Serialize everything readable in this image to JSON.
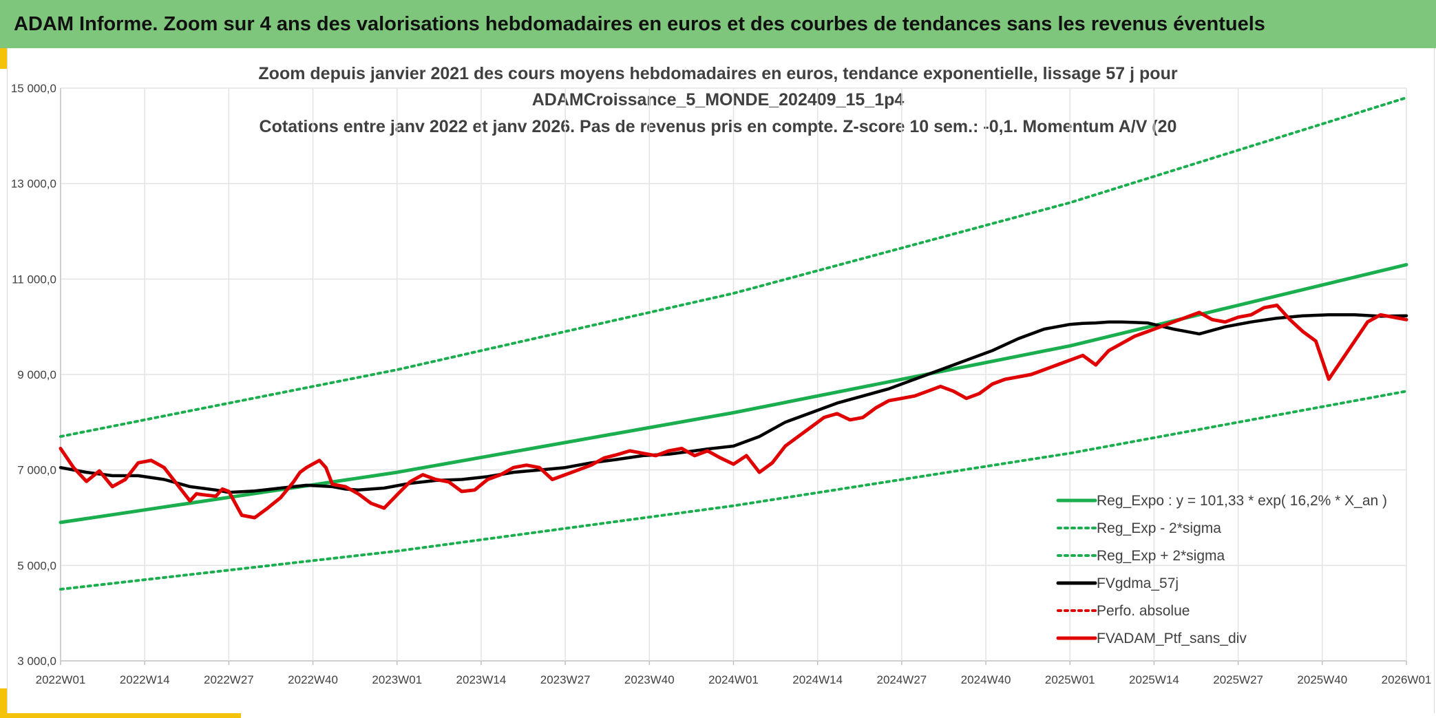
{
  "banner": {
    "title": "ADAM Informe. Zoom sur 4 ans des valorisations hebdomadaires en euros et des courbes de tendances sans les revenus éventuels",
    "color": "#7dc67b",
    "accent": "#f5c20a"
  },
  "chart_data": {
    "type": "line",
    "title_lines": [
      "Zoom depuis janvier 2021 des cours moyens hebdomadaires en euros, tendance exponentielle, lissage 57 j pour",
      "ADAMCroissance_5_MONDE_202409_15_1p4",
      "Cotations entre janv 2022 et janv 2026. Pas de revenus pris en compte. Z-score 10 sem.: -0,1. Momentum A/V (20"
    ],
    "xlabel": "",
    "ylabel": "",
    "x_ticks": [
      "2022W01",
      "2022W14",
      "2022W27",
      "2022W40",
      "2023W01",
      "2023W14",
      "2023W27",
      "2023W40",
      "2024W01",
      "2024W14",
      "2024W27",
      "2024W40",
      "2025W01",
      "2025W14",
      "2025W27",
      "2025W40",
      "2026W01"
    ],
    "x_range": [
      0,
      208
    ],
    "y_ticks": [
      "3 000,0",
      "5 000,0",
      "7 000,0",
      "9 000,0",
      "11 000,0",
      "13 000,0",
      "15 000,0"
    ],
    "ylim": [
      3000,
      15000
    ],
    "grid": true,
    "legend_position": "bottom-right",
    "series": [
      {
        "name": "Reg_Expo : y = 101,33 * exp( 16,2% *  X_an )",
        "color": "#1aae4e",
        "style": "solid",
        "x": [
          0,
          52,
          104,
          156,
          208
        ],
        "y": [
          5900,
          6950,
          8200,
          9600,
          11300
        ]
      },
      {
        "name": "Reg_Exp - 2*sigma",
        "color": "#1aae4e",
        "style": "dotted",
        "x": [
          0,
          52,
          104,
          156,
          208
        ],
        "y": [
          4500,
          5300,
          6250,
          7350,
          8650
        ]
      },
      {
        "name": "Reg_Exp + 2*sigma",
        "color": "#1aae4e",
        "style": "dotted",
        "x": [
          0,
          52,
          104,
          156,
          208
        ],
        "y": [
          7700,
          9100,
          10700,
          12600,
          14800
        ]
      },
      {
        "name": "FVgdma_57j",
        "color": "#000000",
        "style": "solid",
        "x": [
          0,
          4,
          8,
          12,
          16,
          20,
          24,
          26,
          30,
          34,
          38,
          42,
          44,
          46,
          50,
          54,
          58,
          62,
          66,
          70,
          74,
          78,
          82,
          86,
          90,
          94,
          98,
          100,
          104,
          108,
          112,
          116,
          120,
          124,
          128,
          132,
          136,
          140,
          144,
          148,
          152,
          156,
          158,
          160,
          162,
          164,
          168,
          172,
          176,
          180,
          184,
          188,
          192,
          196,
          200,
          204,
          208
        ],
        "y": [
          7050,
          6950,
          6880,
          6880,
          6800,
          6650,
          6580,
          6530,
          6560,
          6620,
          6680,
          6650,
          6600,
          6580,
          6620,
          6720,
          6780,
          6800,
          6860,
          6950,
          7000,
          7050,
          7150,
          7220,
          7300,
          7330,
          7400,
          7440,
          7500,
          7700,
          8000,
          8200,
          8400,
          8550,
          8700,
          8900,
          9100,
          9300,
          9500,
          9750,
          9950,
          10050,
          10070,
          10080,
          10100,
          10100,
          10080,
          9950,
          9850,
          10000,
          10100,
          10180,
          10230,
          10250,
          10250,
          10220,
          10230
        ]
      },
      {
        "name": "Perfo. absolue",
        "color": "#e00000",
        "style": "dotted",
        "x": [],
        "y": []
      },
      {
        "name": "FVADAM_Ptf_sans_div",
        "color": "#e00000",
        "style": "solid",
        "x": [
          0,
          2,
          4,
          6,
          8,
          10,
          12,
          14,
          16,
          18,
          20,
          21,
          22,
          24,
          25,
          26,
          28,
          30,
          32,
          34,
          36,
          37,
          38,
          40,
          41,
          42,
          44,
          46,
          48,
          50,
          52,
          54,
          56,
          58,
          60,
          62,
          64,
          66,
          68,
          70,
          72,
          74,
          76,
          78,
          80,
          82,
          84,
          86,
          88,
          90,
          92,
          94,
          96,
          98,
          100,
          102,
          104,
          106,
          108,
          110,
          112,
          114,
          116,
          118,
          120,
          122,
          124,
          126,
          128,
          130,
          132,
          134,
          136,
          138,
          140,
          142,
          144,
          146,
          148,
          150,
          152,
          154,
          156,
          158,
          160,
          162,
          164,
          166,
          168,
          170,
          172,
          174,
          176,
          178,
          180,
          182,
          184,
          186,
          188,
          190,
          192,
          194,
          196,
          198,
          200,
          202,
          204,
          206,
          208
        ],
        "y": [
          7450,
          7050,
          6760,
          6980,
          6650,
          6800,
          7150,
          7200,
          7050,
          6700,
          6350,
          6500,
          6480,
          6450,
          6600,
          6550,
          6050,
          6000,
          6200,
          6420,
          6750,
          6950,
          7050,
          7200,
          7050,
          6700,
          6650,
          6500,
          6300,
          6200,
          6480,
          6750,
          6900,
          6800,
          6750,
          6550,
          6580,
          6800,
          6900,
          7050,
          7100,
          7050,
          6800,
          6900,
          7000,
          7100,
          7250,
          7320,
          7400,
          7350,
          7300,
          7400,
          7450,
          7300,
          7400,
          7250,
          7120,
          7300,
          6950,
          7150,
          7500,
          7700,
          7900,
          8100,
          8180,
          8050,
          8100,
          8300,
          8450,
          8500,
          8550,
          8650,
          8750,
          8650,
          8500,
          8600,
          8800,
          8900,
          8950,
          9000,
          9100,
          9200,
          9300,
          9400,
          9200,
          9500,
          9650,
          9800,
          9900,
          10000,
          10100,
          10200,
          10300,
          10150,
          10100,
          10200,
          10250,
          10400,
          10450,
          10150,
          9900,
          9700,
          8900,
          9300,
          9700,
          10100,
          10250,
          10200,
          10150
        ]
      }
    ]
  }
}
